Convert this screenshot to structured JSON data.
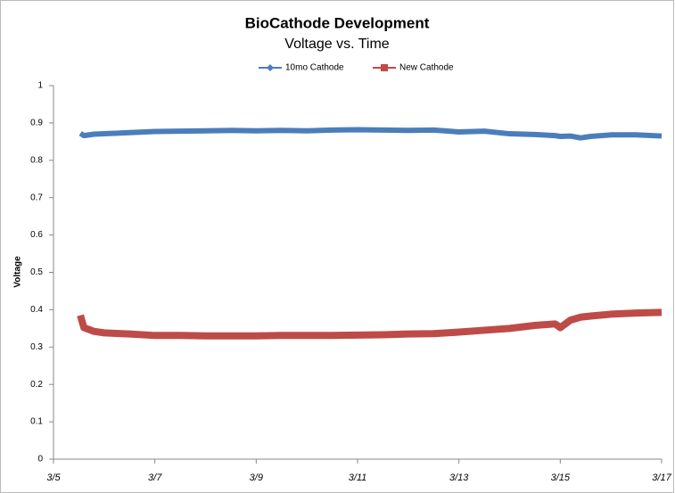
{
  "chart_data": {
    "type": "line",
    "title": "BioCathode Development",
    "subtitle": "Voltage vs. Time",
    "y_label": "Voltage",
    "x": [
      5.53,
      5.6,
      5.8,
      6,
      6.5,
      7,
      7.5,
      8,
      8.5,
      9,
      9.5,
      10,
      10.5,
      11,
      11.5,
      12,
      12.5,
      13,
      13.5,
      14,
      14.5,
      14.9,
      15,
      15.2,
      15.4,
      15.6,
      16,
      16.5,
      17
    ],
    "series": [
      {
        "name": "10mo Cathode",
        "color": "#4a7ebb",
        "marker": "diamond",
        "values": [
          0.872,
          0.866,
          0.87,
          0.871,
          0.874,
          0.877,
          0.878,
          0.879,
          0.88,
          0.879,
          0.88,
          0.879,
          0.881,
          0.882,
          0.881,
          0.88,
          0.881,
          0.876,
          0.878,
          0.871,
          0.869,
          0.866,
          0.864,
          0.865,
          0.86,
          0.864,
          0.868,
          0.868,
          0.865
        ]
      },
      {
        "name": "New Cathode",
        "color": "#be4b48",
        "marker": "square",
        "values": [
          0.385,
          0.352,
          0.342,
          0.338,
          0.335,
          0.331,
          0.331,
          0.33,
          0.33,
          0.33,
          0.331,
          0.331,
          0.331,
          0.332,
          0.333,
          0.335,
          0.336,
          0.34,
          0.345,
          0.35,
          0.358,
          0.362,
          0.352,
          0.372,
          0.38,
          0.383,
          0.388,
          0.391,
          0.393
        ]
      }
    ],
    "xlim": [
      5,
      17
    ],
    "xticks": [
      {
        "value": 5,
        "label": "3/5"
      },
      {
        "value": 7,
        "label": "3/7"
      },
      {
        "value": 9,
        "label": "3/9"
      },
      {
        "value": 11,
        "label": "3/11"
      },
      {
        "value": 13,
        "label": "3/13"
      },
      {
        "value": 15,
        "label": "3/15"
      },
      {
        "value": 17,
        "label": "3/17"
      }
    ],
    "ylim": [
      0,
      1
    ],
    "yticks": [
      0,
      0.1,
      0.2,
      0.3,
      0.4,
      0.5,
      0.6,
      0.7,
      0.8,
      0.9,
      1
    ],
    "grid": false,
    "legend": "top"
  }
}
